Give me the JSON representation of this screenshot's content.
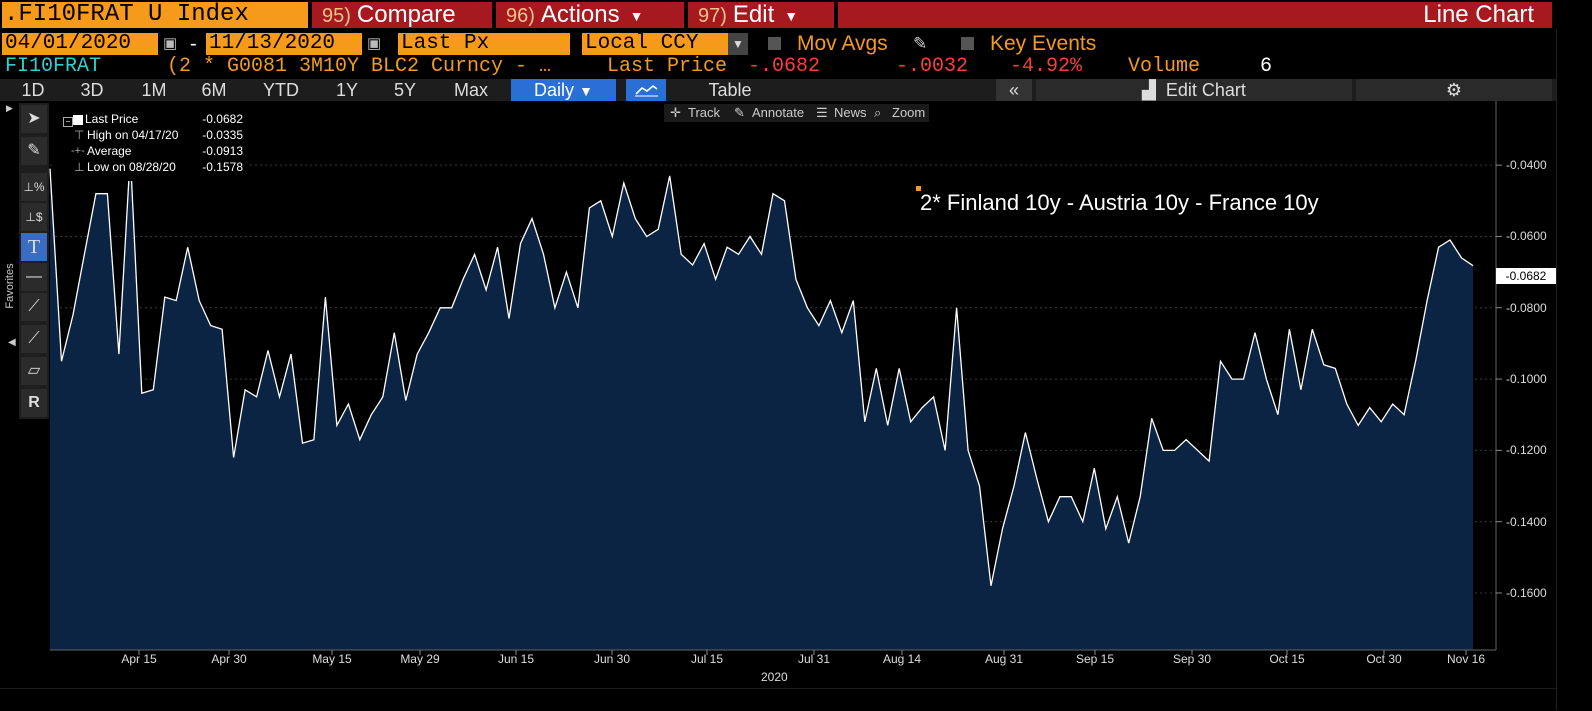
{
  "header": {
    "ticker": ".FI10FRAT U Index",
    "compare": {
      "num": "95)",
      "label": "Compare"
    },
    "actions": {
      "num": "96)",
      "label": "Actions"
    },
    "edit": {
      "num": "97)",
      "label": "Edit"
    },
    "chart_type": "Line Chart"
  },
  "controls": {
    "start_date": "04/01/2020",
    "dash": "-",
    "end_date": "11/13/2020",
    "price_field": "Last Px",
    "currency": "Local CCY",
    "mov_avgs": "Mov Avgs",
    "key_events": "Key Events"
  },
  "security_line": {
    "name": "FI10FRAT",
    "description": "(2 * G0081 3M10Y BLC2 Curncy - …",
    "last_price_label": "Last Price",
    "last_price": "-.0682",
    "change": "-.0032",
    "change_pct": "-4.92%",
    "volume_label": "Volume",
    "volume": "6"
  },
  "tabs": {
    "ranges": [
      "1D",
      "3D",
      "1M",
      "6M",
      "YTD",
      "1Y",
      "5Y",
      "Max"
    ],
    "frequency": "Daily",
    "table": "Table",
    "edit_chart": "Edit Chart"
  },
  "minibar": {
    "track": "Track",
    "annotate": "Annotate",
    "news": "News",
    "zoom": "Zoom"
  },
  "side_label": "Favorites",
  "legend": {
    "last_price": {
      "label": "Last Price",
      "value": "-0.0682"
    },
    "high": {
      "label": "High on 04/17/20",
      "value": "-0.0335"
    },
    "average": {
      "label": "Average",
      "value": "-0.0913"
    },
    "low": {
      "label": "Low on 08/28/20",
      "value": "-0.1578"
    }
  },
  "annotation": "2* Finland 10y - Austria 10y - France 10y",
  "colors": {
    "orange": "#f59a1b",
    "red_bar": "#a6191f",
    "fill": "#0b2444",
    "line": "#ffffff",
    "down": "#ff3b3b"
  },
  "chart_data": {
    "type": "area",
    "xlabel": "2020",
    "x_ticks": [
      "Apr 15",
      "Apr 30",
      "May 15",
      "May 29",
      "Jun 15",
      "Jun 30",
      "Jul 15",
      "Jul 31",
      "Aug 14",
      "Aug 31",
      "Sep 15",
      "Sep 30",
      "Oct 15",
      "Oct 30",
      "Nov 16"
    ],
    "y_ticks": [
      "-0.0400",
      "-0.0600",
      "-0.0800",
      "-0.1000",
      "-0.1200",
      "-0.1400",
      "-0.1600"
    ],
    "ylim": [
      -0.176,
      -0.022
    ],
    "last_value_label": "-0.0682",
    "series": [
      {
        "values": [
          -0.041,
          -0.095,
          -0.082,
          -0.065,
          -0.048,
          -0.048,
          -0.093,
          -0.037,
          -0.104,
          -0.103,
          -0.077,
          -0.078,
          -0.063,
          -0.078,
          -0.085,
          -0.086,
          -0.122,
          -0.103,
          -0.105,
          -0.092,
          -0.105,
          -0.093,
          -0.118,
          -0.117,
          -0.077,
          -0.113,
          -0.107,
          -0.117,
          -0.11,
          -0.105,
          -0.087,
          -0.106,
          -0.093,
          -0.087,
          -0.08,
          -0.08,
          -0.072,
          -0.065,
          -0.075,
          -0.063,
          -0.083,
          -0.062,
          -0.055,
          -0.065,
          -0.08,
          -0.07,
          -0.08,
          -0.052,
          -0.05,
          -0.06,
          -0.045,
          -0.055,
          -0.06,
          -0.058,
          -0.043,
          -0.065,
          -0.068,
          -0.062,
          -0.072,
          -0.063,
          -0.065,
          -0.06,
          -0.065,
          -0.048,
          -0.05,
          -0.072,
          -0.08,
          -0.085,
          -0.078,
          -0.087,
          -0.078,
          -0.112,
          -0.097,
          -0.113,
          -0.097,
          -0.112,
          -0.108,
          -0.105,
          -0.12,
          -0.08,
          -0.12,
          -0.13,
          -0.158,
          -0.142,
          -0.13,
          -0.115,
          -0.128,
          -0.14,
          -0.133,
          -0.133,
          -0.14,
          -0.125,
          -0.142,
          -0.133,
          -0.146,
          -0.133,
          -0.111,
          -0.12,
          -0.12,
          -0.117,
          -0.12,
          -0.123,
          -0.095,
          -0.1,
          -0.1,
          -0.087,
          -0.1,
          -0.11,
          -0.086,
          -0.103,
          -0.086,
          -0.096,
          -0.097,
          -0.107,
          -0.113,
          -0.108,
          -0.112,
          -0.107,
          -0.11,
          -0.095,
          -0.078,
          -0.063,
          -0.061,
          -0.066,
          -0.0682
        ]
      }
    ]
  }
}
